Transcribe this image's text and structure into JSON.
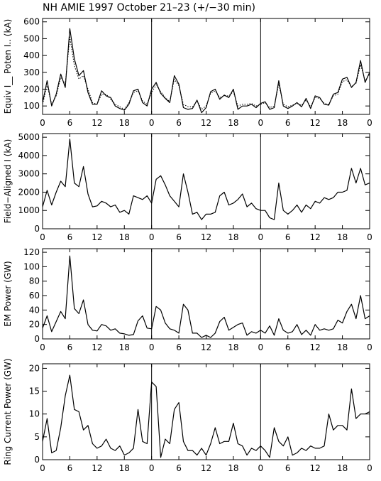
{
  "title": "NH AMIE 1997 October 21–23 (+/−30 min)",
  "x_tick_labels": [
    "0",
    "6",
    "12",
    "18",
    "0",
    "6",
    "12",
    "18",
    "0",
    "6",
    "12",
    "18",
    "0"
  ],
  "colors": {
    "line": "#000000",
    "background": "#ffffff"
  },
  "chart_data": [
    {
      "type": "line",
      "ylabel": "Equiv I__ Poten I.. (kA)",
      "ylim": [
        50,
        620
      ],
      "yticks": [
        100,
        200,
        300,
        400,
        500,
        600
      ],
      "x_range_hours": [
        0,
        72
      ],
      "x_ticks_hours": [
        0,
        6,
        12,
        18,
        24,
        30,
        36,
        42,
        48,
        54,
        60,
        66,
        72
      ],
      "day_boundaries_hours": [
        24,
        48
      ],
      "grid": false,
      "series": [
        {
          "style": "solid",
          "x": [
            0,
            1,
            2,
            3,
            4,
            5,
            6,
            7,
            8,
            9,
            10,
            11,
            12,
            13,
            14,
            15,
            16,
            17,
            18,
            19,
            20,
            21,
            22,
            23,
            24,
            25,
            26,
            27,
            28,
            29,
            30,
            31,
            32,
            33,
            34,
            35,
            36,
            37,
            38,
            39,
            40,
            41,
            42,
            43,
            44,
            45,
            46,
            47,
            48,
            49,
            50,
            51,
            52,
            53,
            54,
            55,
            56,
            57,
            58,
            59,
            60,
            61,
            62,
            63,
            64,
            65,
            66,
            67,
            68,
            69,
            70,
            71,
            72
          ],
          "values": [
            120,
            250,
            100,
            170,
            290,
            210,
            560,
            380,
            280,
            310,
            180,
            110,
            110,
            190,
            160,
            150,
            100,
            85,
            75,
            110,
            190,
            200,
            120,
            100,
            200,
            240,
            175,
            145,
            120,
            280,
            230,
            90,
            80,
            85,
            135,
            60,
            90,
            185,
            200,
            140,
            165,
            150,
            200,
            80,
            100,
            100,
            110,
            90,
            115,
            125,
            80,
            90,
            250,
            100,
            85,
            100,
            120,
            95,
            145,
            85,
            160,
            150,
            110,
            105,
            170,
            180,
            260,
            270,
            210,
            240,
            370,
            240,
            300
          ]
        },
        {
          "style": "dotted",
          "x": [
            0,
            1,
            2,
            3,
            4,
            5,
            6,
            7,
            8,
            9,
            10,
            11,
            12,
            13,
            14,
            15,
            16,
            17,
            18,
            19,
            20,
            21,
            22,
            23,
            24,
            25,
            26,
            27,
            28,
            29,
            30,
            31,
            32,
            33,
            34,
            35,
            36,
            37,
            38,
            39,
            40,
            41,
            42,
            43,
            44,
            45,
            46,
            47,
            48,
            49,
            50,
            51,
            52,
            53,
            54,
            55,
            56,
            57,
            58,
            59,
            60,
            61,
            62,
            63,
            64,
            65,
            66,
            67,
            68,
            69,
            70,
            71,
            72
          ],
          "values": [
            110,
            220,
            110,
            160,
            270,
            230,
            510,
            340,
            260,
            280,
            200,
            120,
            110,
            170,
            170,
            140,
            110,
            95,
            80,
            120,
            180,
            190,
            130,
            110,
            180,
            225,
            185,
            150,
            125,
            260,
            220,
            110,
            95,
            95,
            130,
            80,
            100,
            175,
            190,
            150,
            160,
            160,
            185,
            100,
            110,
            110,
            115,
            100,
            110,
            120,
            90,
            100,
            230,
            110,
            95,
            105,
            115,
            105,
            135,
            95,
            150,
            145,
            115,
            110,
            160,
            170,
            245,
            255,
            215,
            235,
            345,
            250,
            290
          ]
        }
      ]
    },
    {
      "type": "line",
      "ylabel": "Field−Aligned I (kA)",
      "ylim": [
        0,
        5200
      ],
      "yticks": [
        0,
        1000,
        2000,
        3000,
        4000,
        5000
      ],
      "x_range_hours": [
        0,
        72
      ],
      "x_ticks_hours": [
        0,
        6,
        12,
        18,
        24,
        30,
        36,
        42,
        48,
        54,
        60,
        66,
        72
      ],
      "day_boundaries_hours": [
        24,
        48
      ],
      "grid": false,
      "series": [
        {
          "style": "solid",
          "x": [
            0,
            1,
            2,
            3,
            4,
            5,
            6,
            7,
            8,
            9,
            10,
            11,
            12,
            13,
            14,
            15,
            16,
            17,
            18,
            19,
            20,
            21,
            22,
            23,
            24,
            25,
            26,
            27,
            28,
            29,
            30,
            31,
            32,
            33,
            34,
            35,
            36,
            37,
            38,
            39,
            40,
            41,
            42,
            43,
            44,
            45,
            46,
            47,
            48,
            49,
            50,
            51,
            52,
            53,
            54,
            55,
            56,
            57,
            58,
            59,
            60,
            61,
            62,
            63,
            64,
            65,
            66,
            67,
            68,
            69,
            70,
            71,
            72
          ],
          "values": [
            1200,
            2100,
            1300,
            2000,
            2600,
            2300,
            4900,
            2500,
            2300,
            3400,
            1900,
            1200,
            1250,
            1500,
            1400,
            1200,
            1300,
            900,
            1000,
            800,
            1800,
            1700,
            1600,
            1800,
            1400,
            2700,
            2900,
            2400,
            1800,
            1500,
            1200,
            3000,
            2000,
            800,
            900,
            500,
            800,
            800,
            900,
            1800,
            2000,
            1300,
            1400,
            1600,
            1900,
            1200,
            1400,
            1100,
            1000,
            1000,
            600,
            500,
            2500,
            1000,
            800,
            1000,
            1300,
            900,
            1300,
            1100,
            1500,
            1400,
            1700,
            1600,
            1700,
            2000,
            2000,
            2100,
            3300,
            2500,
            3300,
            2400,
            2500
          ]
        }
      ]
    },
    {
      "type": "line",
      "ylabel": "EM Power (GW)",
      "ylim": [
        0,
        125
      ],
      "yticks": [
        0,
        20,
        40,
        60,
        80,
        100,
        120
      ],
      "x_range_hours": [
        0,
        72
      ],
      "x_ticks_hours": [
        0,
        6,
        12,
        18,
        24,
        30,
        36,
        42,
        48,
        54,
        60,
        66,
        72
      ],
      "day_boundaries_hours": [
        24,
        48
      ],
      "grid": false,
      "series": [
        {
          "style": "solid",
          "x": [
            0,
            1,
            2,
            3,
            4,
            5,
            6,
            7,
            8,
            9,
            10,
            11,
            12,
            13,
            14,
            15,
            16,
            17,
            18,
            19,
            20,
            21,
            22,
            23,
            24,
            25,
            26,
            27,
            28,
            29,
            30,
            31,
            32,
            33,
            34,
            35,
            36,
            37,
            38,
            39,
            40,
            41,
            42,
            43,
            44,
            45,
            46,
            47,
            48,
            49,
            50,
            51,
            52,
            53,
            54,
            55,
            56,
            57,
            58,
            59,
            60,
            61,
            62,
            63,
            64,
            65,
            66,
            67,
            68,
            69,
            70,
            71,
            72
          ],
          "values": [
            15,
            32,
            10,
            24,
            38,
            28,
            115,
            42,
            35,
            54,
            20,
            12,
            11,
            20,
            18,
            12,
            14,
            8,
            7,
            5,
            6,
            25,
            32,
            15,
            14,
            45,
            40,
            22,
            14,
            12,
            8,
            48,
            40,
            8,
            8,
            2,
            5,
            2,
            8,
            24,
            30,
            12,
            16,
            20,
            22,
            5,
            10,
            8,
            12,
            8,
            18,
            5,
            28,
            12,
            8,
            10,
            20,
            6,
            12,
            5,
            20,
            12,
            14,
            12,
            14,
            26,
            22,
            38,
            48,
            28,
            60,
            28,
            32
          ]
        }
      ]
    },
    {
      "type": "line",
      "ylabel": "Ring Current Power (GW)",
      "ylim": [
        0,
        21
      ],
      "yticks": [
        0,
        5,
        10,
        15,
        20
      ],
      "x_range_hours": [
        0,
        72
      ],
      "x_ticks_hours": [
        0,
        6,
        12,
        18,
        24,
        30,
        36,
        42,
        48,
        54,
        60,
        66,
        72
      ],
      "day_boundaries_hours": [
        24,
        48
      ],
      "grid": false,
      "series": [
        {
          "style": "solid",
          "x": [
            0,
            1,
            2,
            3,
            4,
            5,
            6,
            7,
            8,
            9,
            10,
            11,
            12,
            13,
            14,
            15,
            16,
            17,
            18,
            19,
            20,
            21,
            22,
            23,
            24,
            25,
            26,
            27,
            28,
            29,
            30,
            31,
            32,
            33,
            34,
            35,
            36,
            37,
            38,
            39,
            40,
            41,
            42,
            43,
            44,
            45,
            46,
            47,
            48,
            49,
            50,
            51,
            52,
            53,
            54,
            55,
            56,
            57,
            58,
            59,
            60,
            61,
            62,
            63,
            64,
            65,
            66,
            67,
            68,
            69,
            70,
            71,
            72
          ],
          "values": [
            4,
            9,
            1.5,
            2,
            7,
            14,
            18.5,
            11,
            10.5,
            6.5,
            7.5,
            3.5,
            2.5,
            3,
            4.5,
            2.5,
            2,
            3,
            1,
            1.5,
            2.5,
            11,
            4,
            3.5,
            17,
            16,
            0.5,
            4.5,
            3.5,
            11,
            12.5,
            4,
            2,
            2,
            1,
            2.5,
            1,
            3.5,
            7,
            3.5,
            4,
            4,
            8,
            3.5,
            3,
            1,
            2.5,
            2,
            3,
            2,
            0.5,
            7,
            4,
            3,
            5,
            1,
            1.5,
            2.5,
            2,
            3,
            2.5,
            2.5,
            3,
            10,
            6.5,
            7.5,
            7.5,
            6.5,
            15.5,
            9,
            10,
            10,
            10.5
          ]
        }
      ]
    }
  ]
}
